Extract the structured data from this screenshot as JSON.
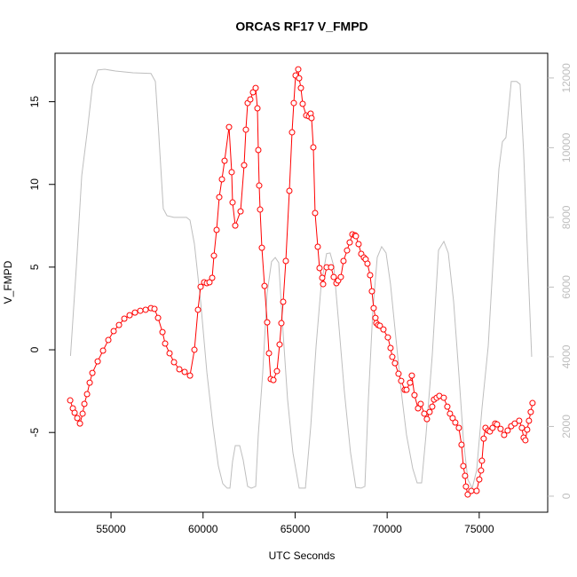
{
  "chart_data": {
    "type": "line",
    "title": "ORCAS RF17 V_FMPD",
    "xlabel": "UTC Seconds",
    "ylabel": "V_FMPD",
    "xlim": [
      51960,
      78720
    ],
    "ylim": [
      -9.82,
      17.93
    ],
    "y2lim": [
      -460,
      12710
    ],
    "xticks": [
      55000,
      60000,
      65000,
      70000,
      75000
    ],
    "yticks": [
      -5,
      0,
      5,
      10,
      15
    ],
    "y2ticks": [
      0,
      2000,
      4000,
      6000,
      8000,
      10000,
      12000
    ],
    "y2_color": "#bebebe",
    "series": [
      {
        "color": "#bebebe",
        "axis": "y2",
        "marker": "none",
        "x": [
          52800,
          53120,
          53410,
          53700,
          53990,
          54280,
          54660,
          55240,
          56200,
          57170,
          57410,
          57560,
          57840,
          58040,
          58420,
          59100,
          59290,
          59530,
          59870,
          60210,
          60540,
          60830,
          61070,
          61310,
          61460,
          61600,
          61750,
          61990,
          62180,
          62420,
          62620,
          62860,
          63000,
          63240,
          63480,
          63720,
          63920,
          64110,
          64300,
          64590,
          64880,
          65220,
          65560,
          65850,
          66140,
          66420,
          66710,
          66900,
          67100,
          67390,
          67670,
          68010,
          68300,
          68590,
          68790,
          68980,
          69220,
          69460,
          69700,
          69940,
          70180,
          70470,
          70760,
          71050,
          71390,
          71630,
          71870,
          72110,
          72450,
          72790,
          73080,
          73320,
          73610,
          73890,
          74140,
          74380,
          74620,
          74860,
          75150,
          75490,
          75820,
          76070,
          76260,
          76450,
          76740,
          77030,
          77220,
          77410,
          77650,
          77850
        ],
        "values": [
          4025,
          6600,
          9200,
          10420,
          11770,
          12230,
          12250,
          12200,
          12150,
          12130,
          11900,
          10680,
          8250,
          8050,
          8000,
          8000,
          7920,
          7240,
          5580,
          3540,
          2010,
          870,
          360,
          230,
          230,
          990,
          1450,
          1450,
          1040,
          280,
          230,
          280,
          1760,
          3540,
          5830,
          6730,
          6850,
          6700,
          5070,
          2780,
          1250,
          230,
          230,
          2010,
          4310,
          6090,
          6960,
          6980,
          6600,
          4820,
          3030,
          1250,
          250,
          230,
          280,
          2780,
          5320,
          6850,
          7160,
          6980,
          6090,
          4560,
          3030,
          1760,
          790,
          380,
          380,
          1760,
          4050,
          7060,
          7310,
          6980,
          5580,
          3540,
          1630,
          480,
          230,
          740,
          2520,
          4310,
          7360,
          9400,
          10170,
          10290,
          11900,
          11900,
          11820,
          9910,
          6600,
          4000
        ]
      },
      {
        "color": "#ff0000",
        "marker": "circle",
        "x": [
          52783,
          52927,
          53024,
          53168,
          53313,
          53458,
          53554,
          53699,
          53843,
          53988,
          54277,
          54566,
          54855,
          55145,
          55434,
          55723,
          56012,
          56301,
          56591,
          56880,
          57169,
          57362,
          57555,
          57796,
          57940,
          58181,
          58422,
          58711,
          59001,
          59290,
          59531,
          59724,
          59868,
          60061,
          60206,
          60350,
          60495,
          60591,
          60736,
          60880,
          61025,
          61170,
          61411,
          61555,
          61603,
          61748,
          62037,
          62230,
          62326,
          62423,
          62567,
          62712,
          62857,
          62953,
          63001,
          63049,
          63098,
          63194,
          63339,
          63483,
          63580,
          63676,
          63821,
          64013,
          64158,
          64254,
          64351,
          64495,
          64688,
          64833,
          64929,
          65026,
          65170,
          65218,
          65315,
          65411,
          65604,
          65749,
          65845,
          65893,
          65990,
          66086,
          66231,
          66327,
          66472,
          66520,
          66713,
          66954,
          67098,
          67243,
          67339,
          67484,
          67628,
          67821,
          67966,
          68110,
          68255,
          68303,
          68448,
          68592,
          68737,
          68833,
          68930,
          69074,
          69171,
          69267,
          69364,
          69412,
          69508,
          69605,
          69797,
          70038,
          70183,
          70279,
          70424,
          70617,
          70761,
          70954,
          71051,
          71243,
          71340,
          71484,
          71677,
          71822,
          72015,
          72159,
          72304,
          72448,
          72545,
          72689,
          72834,
          73075,
          73268,
          73412,
          73557,
          73702,
          73894,
          74039,
          74135,
          74232,
          74280,
          74376,
          74569,
          74858,
          75003,
          75099,
          75148,
          75244,
          75340,
          75485,
          75581,
          75726,
          75871,
          75967,
          76160,
          76353,
          76545,
          76738,
          76931,
          77172,
          77317,
          77413,
          77509,
          77606,
          77702,
          77799,
          77895
        ],
        "values": [
          -3.06,
          -3.54,
          -3.81,
          -4.13,
          -4.46,
          -3.86,
          -3.27,
          -2.68,
          -1.99,
          -1.4,
          -0.7,
          -0.05,
          0.59,
          1.13,
          1.5,
          1.88,
          2.09,
          2.25,
          2.36,
          2.42,
          2.52,
          2.47,
          1.93,
          1.07,
          0.38,
          -0.21,
          -0.75,
          -1.18,
          -1.34,
          -1.56,
          0,
          2.42,
          3.81,
          4.08,
          4.03,
          4.08,
          4.35,
          5.69,
          7.25,
          9.23,
          10.31,
          11.43,
          13.47,
          10.74,
          8.91,
          7.51,
          8.37,
          11.16,
          13.31,
          14.92,
          15.14,
          15.57,
          15.83,
          14.6,
          12.08,
          9.93,
          8.48,
          6.17,
          3.86,
          1.66,
          -0.21,
          -1.77,
          -1.83,
          -1.29,
          0.32,
          1.61,
          2.9,
          5.37,
          9.61,
          13.15,
          14.92,
          16.59,
          16.96,
          16.42,
          15.83,
          14.87,
          14.17,
          14.12,
          14.28,
          14.01,
          12.24,
          8.27,
          6.23,
          4.94,
          4.35,
          3.97,
          4.99,
          4.99,
          4.4,
          4.03,
          4.19,
          4.4,
          5.37,
          6.01,
          6.49,
          6.98,
          6.92,
          6.87,
          6.39,
          5.8,
          5.58,
          5.47,
          5.21,
          4.51,
          3.54,
          2.52,
          1.93,
          1.61,
          1.5,
          1.45,
          1.23,
          0.75,
          0.11,
          -0.43,
          -0.81,
          -1.45,
          -1.88,
          -2.42,
          -2.42,
          -1.99,
          -1.56,
          -2.74,
          -3.54,
          -3.27,
          -3.86,
          -4.19,
          -3.76,
          -3.44,
          -3.01,
          -2.9,
          -2.79,
          -2.9,
          -3.44,
          -3.86,
          -4.13,
          -4.4,
          -4.72,
          -5.74,
          -7.03,
          -7.62,
          -8.27,
          -8.75,
          -8.53,
          -8.53,
          -7.84,
          -7.3,
          -6.71,
          -5.37,
          -4.72,
          -4.88,
          -4.94,
          -4.72,
          -4.46,
          -4.51,
          -4.78,
          -5.15,
          -4.88,
          -4.62,
          -4.46,
          -4.29,
          -4.72,
          -5.31,
          -5.47,
          -4.83,
          -4.29,
          -3.76,
          -3.22
        ]
      }
    ]
  }
}
